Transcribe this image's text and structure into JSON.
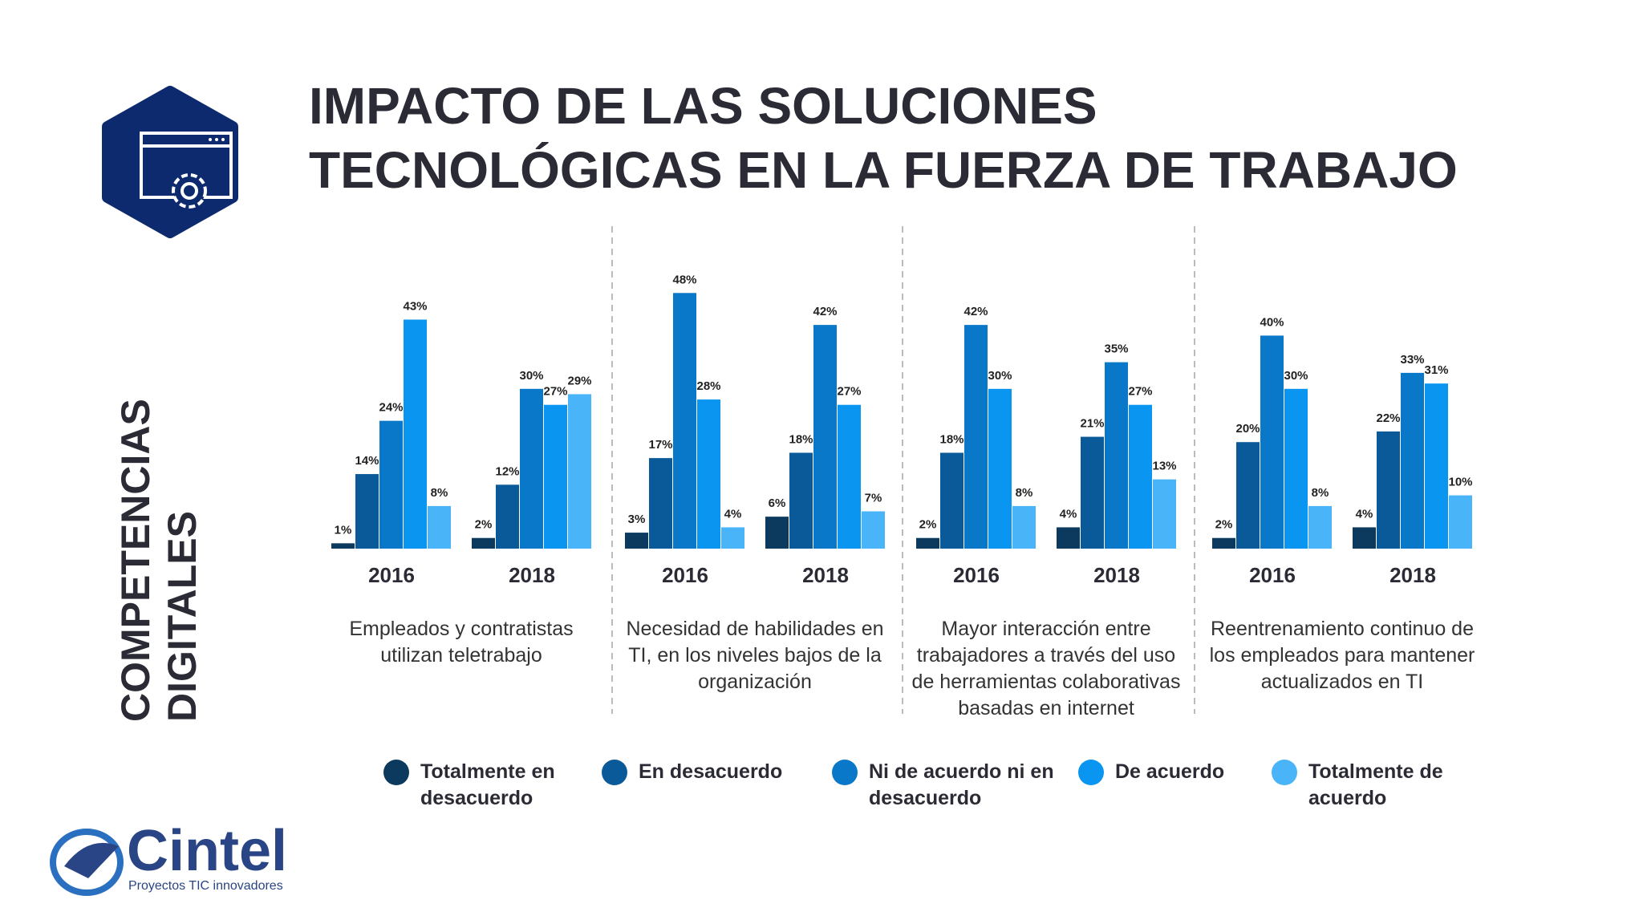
{
  "title": [
    "IMPACTO DE LAS SOLUCIONES",
    "TECNOLÓGICAS EN LA FUERZA DE TRABAJO"
  ],
  "side_label": "COMPETENCIAS DIGITALES",
  "logo": {
    "name": "Cintel",
    "tagline": "Proyectos TIC innovadores"
  },
  "chart_data": [
    {
      "type": "bar",
      "title": "Empleados y contratistas utilizan teletrabajo",
      "categories": [
        "2016",
        "2018"
      ],
      "ylim": [
        0,
        50
      ],
      "series": [
        {
          "name": "Totalmente en desacuerdo",
          "color": "#0b3a5e",
          "values": [
            1,
            2
          ],
          "value_labels": [
            "1%",
            "2%"
          ]
        },
        {
          "name": "En desacuerdo",
          "color": "#0a5a9a",
          "values": [
            14,
            12
          ],
          "value_labels": [
            "14%",
            "12%"
          ]
        },
        {
          "name": "Ni de acuerdo ni en desacuerdo",
          "color": "#0a78c8",
          "values": [
            24,
            30
          ],
          "value_labels": [
            "24%",
            "30%"
          ]
        },
        {
          "name": "De acuerdo",
          "color": "#0a96f0",
          "values": [
            43,
            27
          ],
          "value_labels": [
            "43%",
            "27%"
          ]
        },
        {
          "name": "Totalmente de acuerdo",
          "color": "#4ab4f8",
          "values": [
            8,
            29
          ],
          "value_labels": [
            "8%",
            "29%"
          ]
        }
      ]
    },
    {
      "type": "bar",
      "title": "Necesidad de habilidades en TI, en los niveles bajos de la organización",
      "categories": [
        "2016",
        "2018"
      ],
      "ylim": [
        0,
        50
      ],
      "series": [
        {
          "name": "Totalmente en desacuerdo",
          "color": "#0b3a5e",
          "values": [
            3,
            6
          ],
          "value_labels": [
            "3%",
            "6%"
          ]
        },
        {
          "name": "En desacuerdo",
          "color": "#0a5a9a",
          "values": [
            17,
            18
          ],
          "value_labels": [
            "17%",
            "18%"
          ]
        },
        {
          "name": "Ni de acuerdo ni en desacuerdo",
          "color": "#0a78c8",
          "values": [
            48,
            42
          ],
          "value_labels": [
            "48%",
            "42%"
          ]
        },
        {
          "name": "De acuerdo",
          "color": "#0a96f0",
          "values": [
            28,
            27
          ],
          "value_labels": [
            "28%",
            "27%"
          ]
        },
        {
          "name": "Totalmente de acuerdo",
          "color": "#4ab4f8",
          "values": [
            4,
            7
          ],
          "value_labels": [
            "4%",
            "7%"
          ]
        }
      ]
    },
    {
      "type": "bar",
      "title": "Mayor interacción entre trabajadores a través del uso de herramientas colaborativas basadas en internet",
      "categories": [
        "2016",
        "2018"
      ],
      "ylim": [
        0,
        50
      ],
      "series": [
        {
          "name": "Totalmente en desacuerdo",
          "color": "#0b3a5e",
          "values": [
            2,
            4
          ],
          "value_labels": [
            "2%",
            "4%"
          ]
        },
        {
          "name": "En desacuerdo",
          "color": "#0a5a9a",
          "values": [
            18,
            21
          ],
          "value_labels": [
            "18%",
            "21%"
          ]
        },
        {
          "name": "Ni de acuerdo ni en desacuerdo",
          "color": "#0a78c8",
          "values": [
            42,
            35
          ],
          "value_labels": [
            "42%",
            "35%"
          ]
        },
        {
          "name": "De acuerdo",
          "color": "#0a96f0",
          "values": [
            30,
            27
          ],
          "value_labels": [
            "30%",
            "27%"
          ]
        },
        {
          "name": "Totalmente de acuerdo",
          "color": "#4ab4f8",
          "values": [
            8,
            13
          ],
          "value_labels": [
            "8%",
            "13%"
          ]
        }
      ]
    },
    {
      "type": "bar",
      "title": "Reentrenamiento continuo de los empleados para mantener actualizados en TI",
      "categories": [
        "2016",
        "2018"
      ],
      "ylim": [
        0,
        50
      ],
      "series": [
        {
          "name": "Totalmente en desacuerdo",
          "color": "#0b3a5e",
          "values": [
            2,
            4
          ],
          "value_labels": [
            "2%",
            "4%"
          ]
        },
        {
          "name": "En desacuerdo",
          "color": "#0a5a9a",
          "values": [
            20,
            22
          ],
          "value_labels": [
            "20%",
            "22%"
          ]
        },
        {
          "name": "Ni de acuerdo ni en desacuerdo",
          "color": "#0a78c8",
          "values": [
            40,
            33
          ],
          "value_labels": [
            "40%",
            "33%"
          ]
        },
        {
          "name": "De acuerdo",
          "color": "#0a96f0",
          "values": [
            30,
            31
          ],
          "value_labels": [
            "30%",
            "31%"
          ]
        },
        {
          "name": "Totalmente de acuerdo",
          "color": "#4ab4f8",
          "values": [
            8,
            10
          ],
          "value_labels": [
            "8%",
            "10%"
          ]
        }
      ]
    }
  ]
}
